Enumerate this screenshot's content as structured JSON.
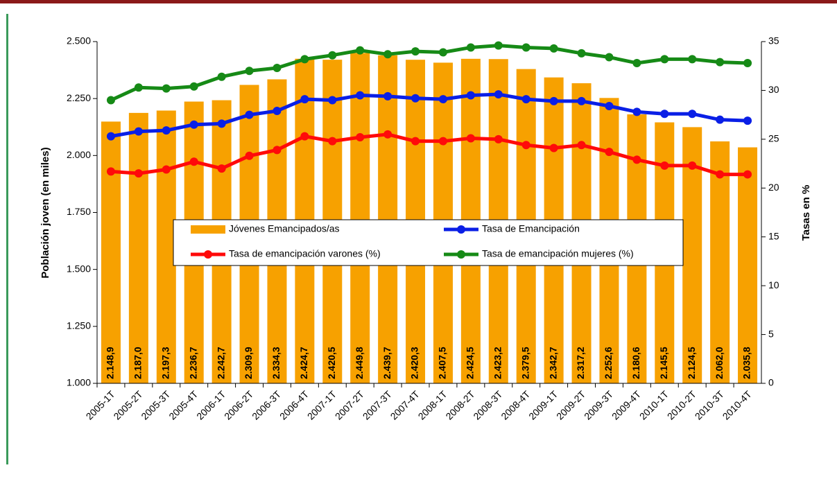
{
  "chart_data": {
    "type": "bar",
    "categories": [
      "2005-1T",
      "2005-2T",
      "2005-3T",
      "2005-4T",
      "2006-1T",
      "2006-2T",
      "2006-3T",
      "2006-4T",
      "2007-1T",
      "2007-2T",
      "2007-3T",
      "2007-4T",
      "2008-1T",
      "2008-2T",
      "2008-3T",
      "2008-4T",
      "2009-1T",
      "2009-2T",
      "2009-3T",
      "2009-4T",
      "2010-1T",
      "2010-2T",
      "2010-3T",
      "2010-4T"
    ],
    "ylabel": "Población joven (en miles)",
    "y2label": "Tasas en %",
    "ylim": [
      1000,
      2500
    ],
    "yticks": [
      {
        "value": 1000,
        "label": "1.000"
      },
      {
        "value": 1250,
        "label": "1.250"
      },
      {
        "value": 1500,
        "label": "1.500"
      },
      {
        "value": 1750,
        "label": "1.750"
      },
      {
        "value": 2000,
        "label": "2.000"
      },
      {
        "value": 2250,
        "label": "2.250"
      },
      {
        "value": 2500,
        "label": "2.500"
      }
    ],
    "y2lim": [
      0,
      35
    ],
    "y2ticks": [
      0,
      5,
      10,
      15,
      20,
      25,
      30,
      35
    ],
    "series": [
      {
        "name": "Jóvenes Emancipados/as",
        "type": "bar",
        "color": "#f7a100",
        "axis": "y",
        "values": [
          2148.9,
          2187.0,
          2197.3,
          2236.7,
          2242.7,
          2309.9,
          2334.3,
          2424.7,
          2420.5,
          2449.8,
          2439.7,
          2420.3,
          2407.5,
          2424.5,
          2423.2,
          2379.5,
          2342.7,
          2317.2,
          2252.6,
          2180.6,
          2145.5,
          2124.5,
          2062.0,
          2035.8
        ],
        "value_labels": [
          "2.148,9",
          "2.187,0",
          "2.197,3",
          "2.236,7",
          "2.242,7",
          "2.309,9",
          "2.334,3",
          "2.424,7",
          "2.420,5",
          "2.449,8",
          "2.439,7",
          "2.420,3",
          "2.407,5",
          "2.424,5",
          "2.423,2",
          "2.379,5",
          "2.342,7",
          "2.317,2",
          "2.252,6",
          "2.180,6",
          "2.145,5",
          "2.124,5",
          "2.062,0",
          "2.035,8"
        ]
      },
      {
        "name": "Tasa de Emancipación",
        "type": "line",
        "color": "#0a1fe6",
        "axis": "y2",
        "values": [
          25.3,
          25.8,
          25.9,
          26.5,
          26.6,
          27.5,
          27.9,
          29.1,
          29.0,
          29.5,
          29.4,
          29.2,
          29.1,
          29.5,
          29.6,
          29.1,
          28.9,
          28.9,
          28.4,
          27.8,
          27.6,
          27.6,
          27.0,
          26.9
        ]
      },
      {
        "name": "Tasa de emancipación varones (%)",
        "type": "line",
        "color": "#ff0a0a",
        "axis": "y2",
        "values": [
          21.7,
          21.5,
          21.9,
          22.7,
          22.0,
          23.3,
          23.9,
          25.3,
          24.8,
          25.2,
          25.5,
          24.8,
          24.8,
          25.1,
          25.0,
          24.4,
          24.1,
          24.4,
          23.7,
          22.9,
          22.3,
          22.3,
          21.4,
          21.4
        ]
      },
      {
        "name": "Tasa de emancipación mujeres (%)",
        "type": "line",
        "color": "#168a16",
        "axis": "y2",
        "values": [
          29.0,
          30.3,
          30.2,
          30.4,
          31.4,
          32.0,
          32.3,
          33.2,
          33.6,
          34.1,
          33.7,
          34.0,
          33.9,
          34.4,
          34.6,
          34.4,
          34.3,
          33.8,
          33.4,
          32.8,
          33.2,
          33.2,
          32.9,
          32.8
        ]
      }
    ]
  }
}
